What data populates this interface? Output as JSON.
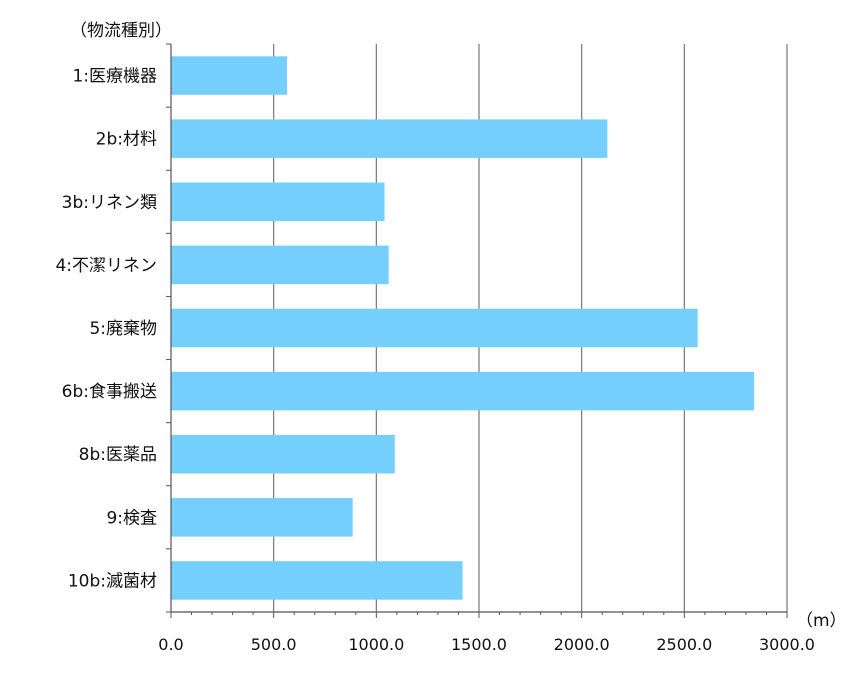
{
  "chart_data": {
    "type": "bar",
    "orientation": "horizontal",
    "title": "",
    "ylabel": "（物流種別）",
    "xlabel": "（m）",
    "categories": [
      "1:医療機器",
      "2b:材料",
      "3b:リネン類",
      "4:不潔リネン",
      "5:廃棄物",
      "6b:食事搬送",
      "8b:医薬品",
      "9:検査",
      "10b:滅菌材"
    ],
    "values": [
      565,
      2125,
      1040,
      1060,
      2565,
      2840,
      1090,
      885,
      1420
    ],
    "xlim": [
      0,
      3000
    ],
    "xticks": [
      "0.0",
      "500.0",
      "1000.0",
      "1500.0",
      "2000.0",
      "2500.0",
      "3000.0"
    ],
    "xtick_values": [
      0,
      500,
      1000,
      1500,
      2000,
      2500,
      3000
    ],
    "grid": true,
    "bar_color": "#75cffd",
    "grid_color": "#777777"
  }
}
